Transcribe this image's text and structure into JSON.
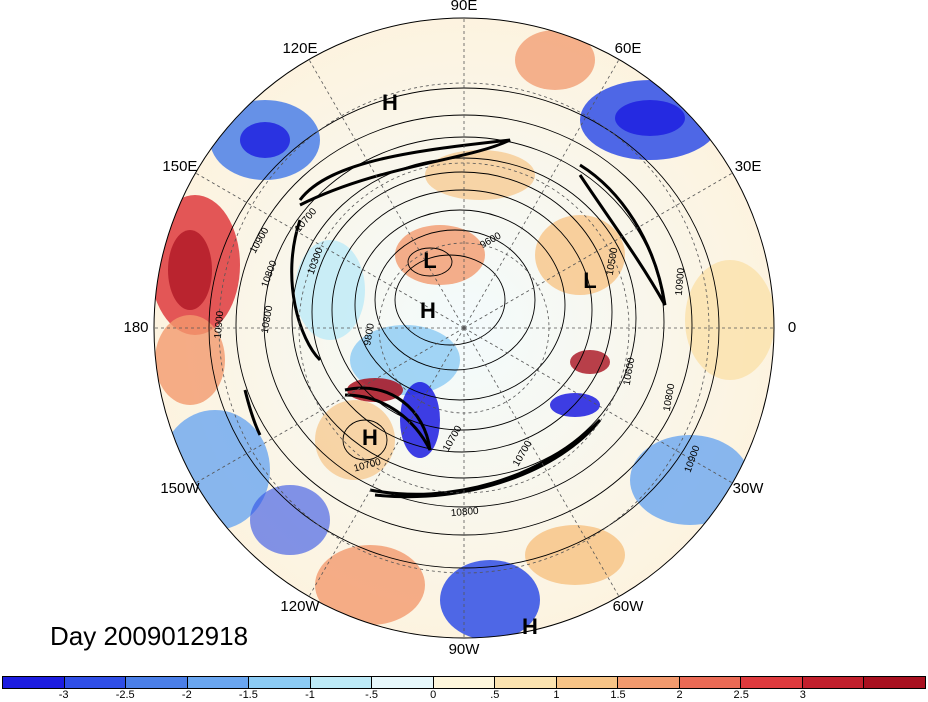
{
  "figure": {
    "title": "Day 2009012918"
  },
  "longitude_labels": [
    {
      "text": "90E",
      "lon": 90
    },
    {
      "text": "60E",
      "lon": 60
    },
    {
      "text": "30E",
      "lon": 30
    },
    {
      "text": "0",
      "lon": 0
    },
    {
      "text": "30W",
      "lon": -30
    },
    {
      "text": "60W",
      "lon": -60
    },
    {
      "text": "90W",
      "lon": -90
    },
    {
      "text": "120W",
      "lon": -120
    },
    {
      "text": "150W",
      "lon": -150
    },
    {
      "text": "180",
      "lon": 180
    },
    {
      "text": "150E",
      "lon": 150
    },
    {
      "text": "120E",
      "lon": 120
    }
  ],
  "pressure_centers": [
    {
      "text": "H",
      "kind": "high"
    },
    {
      "text": "L",
      "kind": "low"
    },
    {
      "text": "H",
      "kind": "high"
    },
    {
      "text": "L",
      "kind": "low"
    },
    {
      "text": "H",
      "kind": "high"
    },
    {
      "text": "H",
      "kind": "high"
    }
  ],
  "contour_labels": [
    "9600",
    "9800",
    "10300",
    "10700",
    "10800",
    "10900",
    "10900",
    "10800",
    "10700",
    "10700",
    "10800",
    "10900",
    "10800",
    "10600",
    "10500",
    "10900",
    "10700"
  ],
  "colorbar": {
    "colors": [
      "#1c1ce0",
      "#2f4ee6",
      "#4b7fe8",
      "#6aa6f0",
      "#8ccbf4",
      "#bdeaf7",
      "#e6f7fb",
      "#fdf6dc",
      "#fbe3b0",
      "#f7c487",
      "#f29a6e",
      "#ea6a55",
      "#de3a3d",
      "#c21f2c",
      "#a8101f"
    ],
    "tick_labels": [
      "-3",
      "-2.5",
      "-2",
      "-1.5",
      "-1",
      "-.5",
      "0",
      ".5",
      "1",
      "1.5",
      "2",
      "2.5",
      "3"
    ],
    "tick_values": [
      -3,
      -2.5,
      -2,
      -1.5,
      -1,
      -0.5,
      0,
      0.5,
      1,
      1.5,
      2,
      2.5,
      3
    ]
  }
}
